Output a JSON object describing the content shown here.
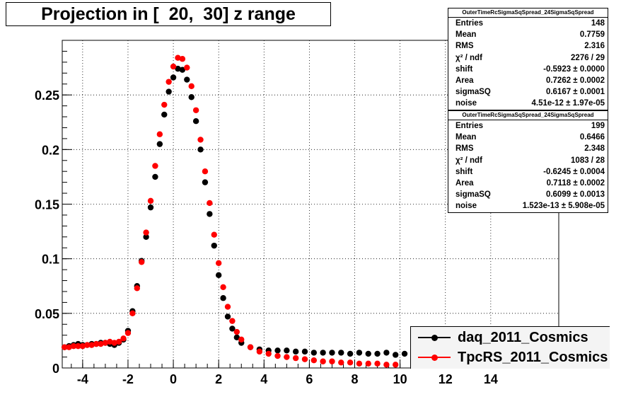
{
  "title": "Projection in [  20,  30] z range",
  "stats": [
    {
      "name": "OuterTimeRcSigmaSqSpread_24SigmaSqSpread",
      "rows": [
        {
          "label": "Entries",
          "value": "148"
        },
        {
          "label": "Mean",
          "value": "0.7759"
        },
        {
          "label": "RMS",
          "value": "2.316"
        },
        {
          "label": "χ² / ndf",
          "value": "2276 / 29"
        },
        {
          "label": "shift",
          "value": "-0.5923 ± 0.0000"
        },
        {
          "label": "Area",
          "value": "0.7262 ± 0.0002"
        },
        {
          "label": "sigmaSQ",
          "value": "0.6167 ± 0.0001"
        },
        {
          "label": "noise",
          "value": "4.51e-12 ± 1.97e-05"
        }
      ]
    },
    {
      "name": "OuterTimeRcSigmaSqSpread_24SigmaSqSpread",
      "rows": [
        {
          "label": "Entries",
          "value": "199"
        },
        {
          "label": "Mean",
          "value": "0.6466"
        },
        {
          "label": "RMS",
          "value": "2.348"
        },
        {
          "label": "χ² / ndf",
          "value": "1083 / 28"
        },
        {
          "label": "shift",
          "value": "-0.6245 ± 0.0004"
        },
        {
          "label": "Area",
          "value": "0.7118 ± 0.0002"
        },
        {
          "label": "sigmaSQ",
          "value": "0.6099 ± 0.0013"
        },
        {
          "label": "noise",
          "value": "1.523e-13 ± 5.908e-05"
        }
      ]
    }
  ],
  "legend": [
    {
      "label": "daq_2011_Cosmics",
      "color": "#000000"
    },
    {
      "label": "TpcRS_2011_Cosmics",
      "color": "#ff0000"
    }
  ],
  "chart_data": {
    "type": "scatter",
    "title": "Projection in [  20,  30] z range",
    "xlabel": "",
    "ylabel": "",
    "xlim": [
      -4.9,
      17.0
    ],
    "ylim": [
      0,
      0.3
    ],
    "grid": true,
    "x_ticks": [
      -4,
      -2,
      0,
      2,
      4,
      6,
      8,
      10,
      12,
      14
    ],
    "y_ticks": [
      0,
      0.05,
      0.1,
      0.15,
      0.2,
      0.25
    ],
    "y_tick_labels": [
      "0",
      "0.05",
      "0.1",
      "0.15",
      "0.2",
      "0.25"
    ],
    "legend_position": "bottom-right",
    "series": [
      {
        "name": "daq_2011_Cosmics",
        "color": "#000000",
        "points": [
          [
            -4.8,
            0.019
          ],
          [
            -4.6,
            0.02
          ],
          [
            -4.4,
            0.021
          ],
          [
            -4.2,
            0.022
          ],
          [
            -4.0,
            0.021
          ],
          [
            -3.8,
            0.021
          ],
          [
            -3.6,
            0.022
          ],
          [
            -3.4,
            0.022
          ],
          [
            -3.2,
            0.023
          ],
          [
            -3.0,
            0.023
          ],
          [
            -2.8,
            0.022
          ],
          [
            -2.6,
            0.021
          ],
          [
            -2.4,
            0.023
          ],
          [
            -2.2,
            0.026
          ],
          [
            -2.0,
            0.034
          ],
          [
            -1.8,
            0.052
          ],
          [
            -1.6,
            0.075
          ],
          [
            -1.4,
            0.098
          ],
          [
            -1.2,
            0.12
          ],
          [
            -1.0,
            0.147
          ],
          [
            -0.8,
            0.175
          ],
          [
            -0.6,
            0.205
          ],
          [
            -0.4,
            0.232
          ],
          [
            -0.2,
            0.253
          ],
          [
            0.0,
            0.266
          ],
          [
            0.2,
            0.274
          ],
          [
            0.4,
            0.273
          ],
          [
            0.6,
            0.264
          ],
          [
            0.8,
            0.248
          ],
          [
            1.0,
            0.226
          ],
          [
            1.2,
            0.2
          ],
          [
            1.4,
            0.17
          ],
          [
            1.6,
            0.141
          ],
          [
            1.8,
            0.112
          ],
          [
            2.0,
            0.085
          ],
          [
            2.2,
            0.064
          ],
          [
            2.4,
            0.047
          ],
          [
            2.6,
            0.036
          ],
          [
            2.8,
            0.028
          ],
          [
            3.0,
            0.023
          ],
          [
            3.4,
            0.019
          ],
          [
            3.8,
            0.017
          ],
          [
            4.2,
            0.016
          ],
          [
            4.6,
            0.016
          ],
          [
            5.0,
            0.016
          ],
          [
            5.4,
            0.015
          ],
          [
            5.8,
            0.015
          ],
          [
            6.2,
            0.014
          ],
          [
            6.6,
            0.014
          ],
          [
            7.0,
            0.014
          ],
          [
            7.4,
            0.014
          ],
          [
            7.8,
            0.013
          ],
          [
            8.2,
            0.014
          ],
          [
            8.6,
            0.013
          ],
          [
            9.0,
            0.013
          ],
          [
            9.4,
            0.014
          ],
          [
            9.8,
            0.012
          ],
          [
            10.2,
            0.013
          ]
        ]
      },
      {
        "name": "TpcRS_2011_Cosmics",
        "color": "#ff0000",
        "points": [
          [
            -4.8,
            0.019
          ],
          [
            -4.6,
            0.019
          ],
          [
            -4.4,
            0.02
          ],
          [
            -4.2,
            0.02
          ],
          [
            -4.0,
            0.02
          ],
          [
            -3.8,
            0.021
          ],
          [
            -3.6,
            0.021
          ],
          [
            -3.4,
            0.022
          ],
          [
            -3.2,
            0.022
          ],
          [
            -3.0,
            0.023
          ],
          [
            -2.8,
            0.024
          ],
          [
            -2.6,
            0.023
          ],
          [
            -2.4,
            0.024
          ],
          [
            -2.2,
            0.027
          ],
          [
            -2.0,
            0.032
          ],
          [
            -1.8,
            0.05
          ],
          [
            -1.6,
            0.073
          ],
          [
            -1.4,
            0.097
          ],
          [
            -1.2,
            0.124
          ],
          [
            -1.0,
            0.153
          ],
          [
            -0.8,
            0.185
          ],
          [
            -0.6,
            0.214
          ],
          [
            -0.4,
            0.241
          ],
          [
            -0.2,
            0.262
          ],
          [
            0.0,
            0.276
          ],
          [
            0.2,
            0.284
          ],
          [
            0.4,
            0.283
          ],
          [
            0.6,
            0.275
          ],
          [
            0.8,
            0.258
          ],
          [
            1.0,
            0.236
          ],
          [
            1.2,
            0.209
          ],
          [
            1.4,
            0.18
          ],
          [
            1.6,
            0.151
          ],
          [
            1.8,
            0.122
          ],
          [
            2.0,
            0.096
          ],
          [
            2.2,
            0.074
          ],
          [
            2.4,
            0.056
          ],
          [
            2.6,
            0.043
          ],
          [
            2.8,
            0.033
          ],
          [
            3.0,
            0.026
          ],
          [
            3.4,
            0.019
          ],
          [
            3.8,
            0.015
          ],
          [
            4.2,
            0.013
          ],
          [
            4.6,
            0.011
          ],
          [
            5.0,
            0.01
          ],
          [
            5.4,
            0.009
          ],
          [
            5.8,
            0.008
          ],
          [
            6.2,
            0.007
          ],
          [
            6.6,
            0.006
          ],
          [
            7.0,
            0.006
          ],
          [
            7.4,
            0.005
          ],
          [
            7.8,
            0.005
          ],
          [
            8.2,
            0.004
          ],
          [
            8.6,
            0.004
          ],
          [
            9.0,
            0.004
          ],
          [
            9.4,
            0.003
          ],
          [
            9.8,
            0.003
          ]
        ]
      }
    ]
  }
}
